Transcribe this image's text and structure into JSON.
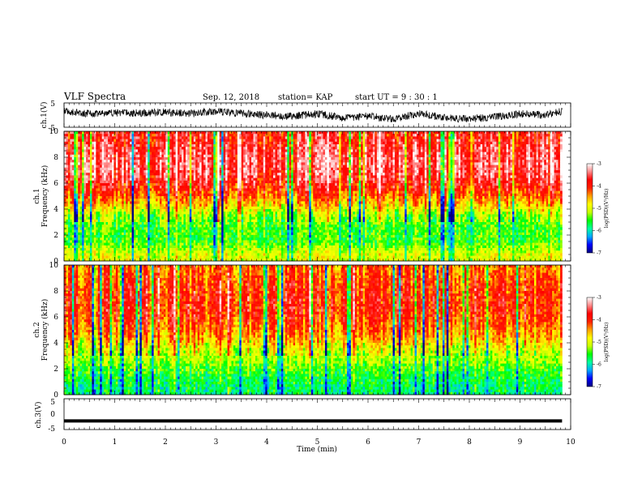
{
  "header": {
    "title": "VLF Spectra",
    "date": "Sep. 12, 2018",
    "station": "station= KAP",
    "start": "start  UT  =   9 : 30 : 1"
  },
  "chart_data": [
    {
      "type": "line",
      "panel": "ch1_waveform",
      "xlabel": "",
      "ylabel": "ch.1(V)",
      "xlim": [
        0,
        10
      ],
      "ylim": [
        -5,
        5
      ],
      "yticks": [
        5,
        -5
      ],
      "data_end_min": 9.83,
      "series": [
        {
          "x": [
            0,
            0.5,
            1.0,
            1.5,
            2.0,
            2.5,
            3.0,
            3.5,
            4.0,
            4.5,
            5.0,
            5.5,
            6.0,
            6.5,
            7.0,
            7.5,
            8.0,
            8.5,
            9.0,
            9.5,
            9.83
          ],
          "y": [
            1.5,
            0.5,
            1.0,
            0.8,
            1.2,
            0.6,
            1.5,
            0.7,
            0.0,
            -0.5,
            0.5,
            -1.0,
            -0.5,
            -1.5,
            0.5,
            -1.0,
            -1.5,
            -0.8,
            0.5,
            0.0,
            1.5
          ]
        }
      ]
    },
    {
      "type": "heatmap",
      "panel": "ch1_spectrogram",
      "xlabel": "",
      "ylabel": "ch.1",
      "ylabel2": "Frequency  (kHz)",
      "xlim": [
        0,
        10
      ],
      "ylim": [
        0,
        10
      ],
      "yticks": [
        0,
        2,
        4,
        6,
        8,
        10
      ],
      "data_end_min": 9.83,
      "colorbar": {
        "label": "log(PSD)(V²/Hz)",
        "min": -7,
        "max": -3,
        "ticks": [
          -3,
          -4,
          -5,
          -6,
          -7
        ]
      },
      "psd_by_frequency": {
        "freq_khz": [
          0.5,
          1.5,
          2.5,
          3.5,
          4.5,
          5.5,
          6.5,
          7.5,
          8.5,
          9.5
        ],
        "log_psd": [
          -5.0,
          -5.5,
          -5.5,
          -5.3,
          -4.6,
          -4.0,
          -3.6,
          -3.5,
          -3.6,
          -3.8
        ]
      }
    },
    {
      "type": "heatmap",
      "panel": "ch2_spectrogram",
      "xlabel": "",
      "ylabel": "ch.2",
      "ylabel2": "Frequency  (kHz)",
      "xlim": [
        0,
        10
      ],
      "ylim": [
        0,
        10
      ],
      "yticks": [
        0,
        2,
        4,
        6,
        8,
        10
      ],
      "data_end_min": 9.83,
      "colorbar": {
        "label": "log(PSD)(V²/Hz)",
        "min": -7,
        "max": -3,
        "ticks": [
          -3,
          -4,
          -5,
          -6,
          -7
        ]
      },
      "psd_by_frequency": {
        "freq_khz": [
          0.5,
          1.5,
          2.5,
          3.5,
          4.5,
          5.5,
          6.5,
          7.5,
          8.5,
          9.5
        ],
        "log_psd": [
          -5.8,
          -5.6,
          -5.3,
          -5.0,
          -4.5,
          -4.2,
          -4.0,
          -4.0,
          -4.1,
          -4.3
        ]
      }
    },
    {
      "type": "line",
      "panel": "ch3_waveform",
      "xlabel": "Time  (min)",
      "ylabel": "ch.3(V)",
      "xlim": [
        0,
        10
      ],
      "ylim": [
        -5,
        5
      ],
      "yticks": [
        5,
        0,
        -5
      ],
      "xticks": [
        0,
        1,
        2,
        3,
        4,
        5,
        6,
        7,
        8,
        9,
        10
      ],
      "data_end_min": 9.83,
      "series": [
        {
          "x": [
            0,
            9.83
          ],
          "y": [
            -2.2,
            -2.2
          ]
        }
      ]
    }
  ],
  "colors": {
    "colormap": [
      "#000080",
      "#0000ff",
      "#00a8ff",
      "#00ffa0",
      "#00ff00",
      "#c8ff00",
      "#ffff00",
      "#ffa000",
      "#ff2000",
      "#ff0000",
      "#ff8888",
      "#ffffff"
    ]
  }
}
